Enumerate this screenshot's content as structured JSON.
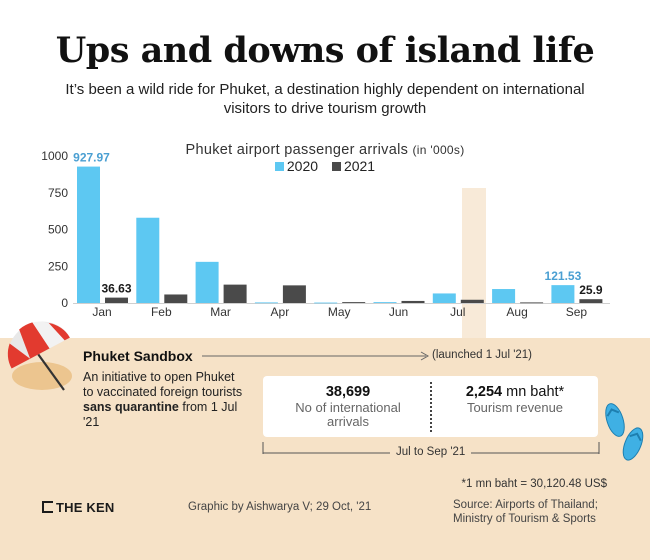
{
  "header": {
    "title": "Ups and downs of island life",
    "subtitle": "It’s been a wild ride for Phuket, a destination highly dependent on international visitors to drive tourism growth"
  },
  "chart_data": {
    "type": "bar",
    "title": "Phuket airport passenger arrivals",
    "title_unit": "(in '000s)",
    "categories": [
      "Jan",
      "Feb",
      "Mar",
      "Apr",
      "May",
      "Jun",
      "Jul",
      "Aug",
      "Sep"
    ],
    "series": [
      {
        "name": "2020",
        "color": "#5dc8f2",
        "values": [
          927.97,
          580,
          280,
          4,
          3,
          6,
          65,
          95,
          121.53
        ]
      },
      {
        "name": "2021",
        "color": "#4a4a4a",
        "values": [
          36.63,
          58,
          125,
          120,
          6,
          14,
          22,
          4,
          25.9
        ]
      }
    ],
    "data_labels": [
      {
        "series": "2020",
        "category": "Jan",
        "text": "927.97"
      },
      {
        "series": "2021",
        "category": "Jan",
        "text": "36.63"
      },
      {
        "series": "2020",
        "category": "Sep",
        "text": "121.53"
      },
      {
        "series": "2021",
        "category": "Sep",
        "text": "25.9"
      }
    ],
    "y_ticks": [
      0,
      250,
      500,
      750,
      1000
    ],
    "ylim": [
      0,
      1000
    ],
    "grid": false,
    "legend_position": "top-center",
    "highlight_category": "Jul"
  },
  "sandbox": {
    "title": "Phuket Sandbox",
    "description_prefix": "An initiative to open Phuket to vaccinated foreign tourists ",
    "description_bold": "sans quarantine",
    "description_suffix": " from 1 Jul '21",
    "launch_note": "(launched 1 Jul '21)"
  },
  "stats": {
    "arrivals_value": "38,699",
    "arrivals_label": "No of international arrivals",
    "revenue_value": "2,254",
    "revenue_suffix": " mn baht*",
    "revenue_label": "Tourism revenue",
    "period": "Jul to Sep '21"
  },
  "footer": {
    "fx_note": "*1 mn baht = 30,120.48 US$",
    "logo_text": "THE KEN",
    "credit": "Graphic by Aishwarya V; 29 Oct, '21",
    "source": "Source: Airports of Thailand; Ministry of Tourism & Sports"
  },
  "colors": {
    "sand": "#f6e2c7",
    "highlight": "#f8ead8",
    "series_2020": "#5dc8f2",
    "series_2021": "#4a4a4a",
    "label_2020": "#4a9fd2"
  },
  "icons": {
    "umbrella": "beach-umbrella-icon",
    "flipflops": "flip-flops-icon",
    "logo": "the-ken-logo"
  }
}
